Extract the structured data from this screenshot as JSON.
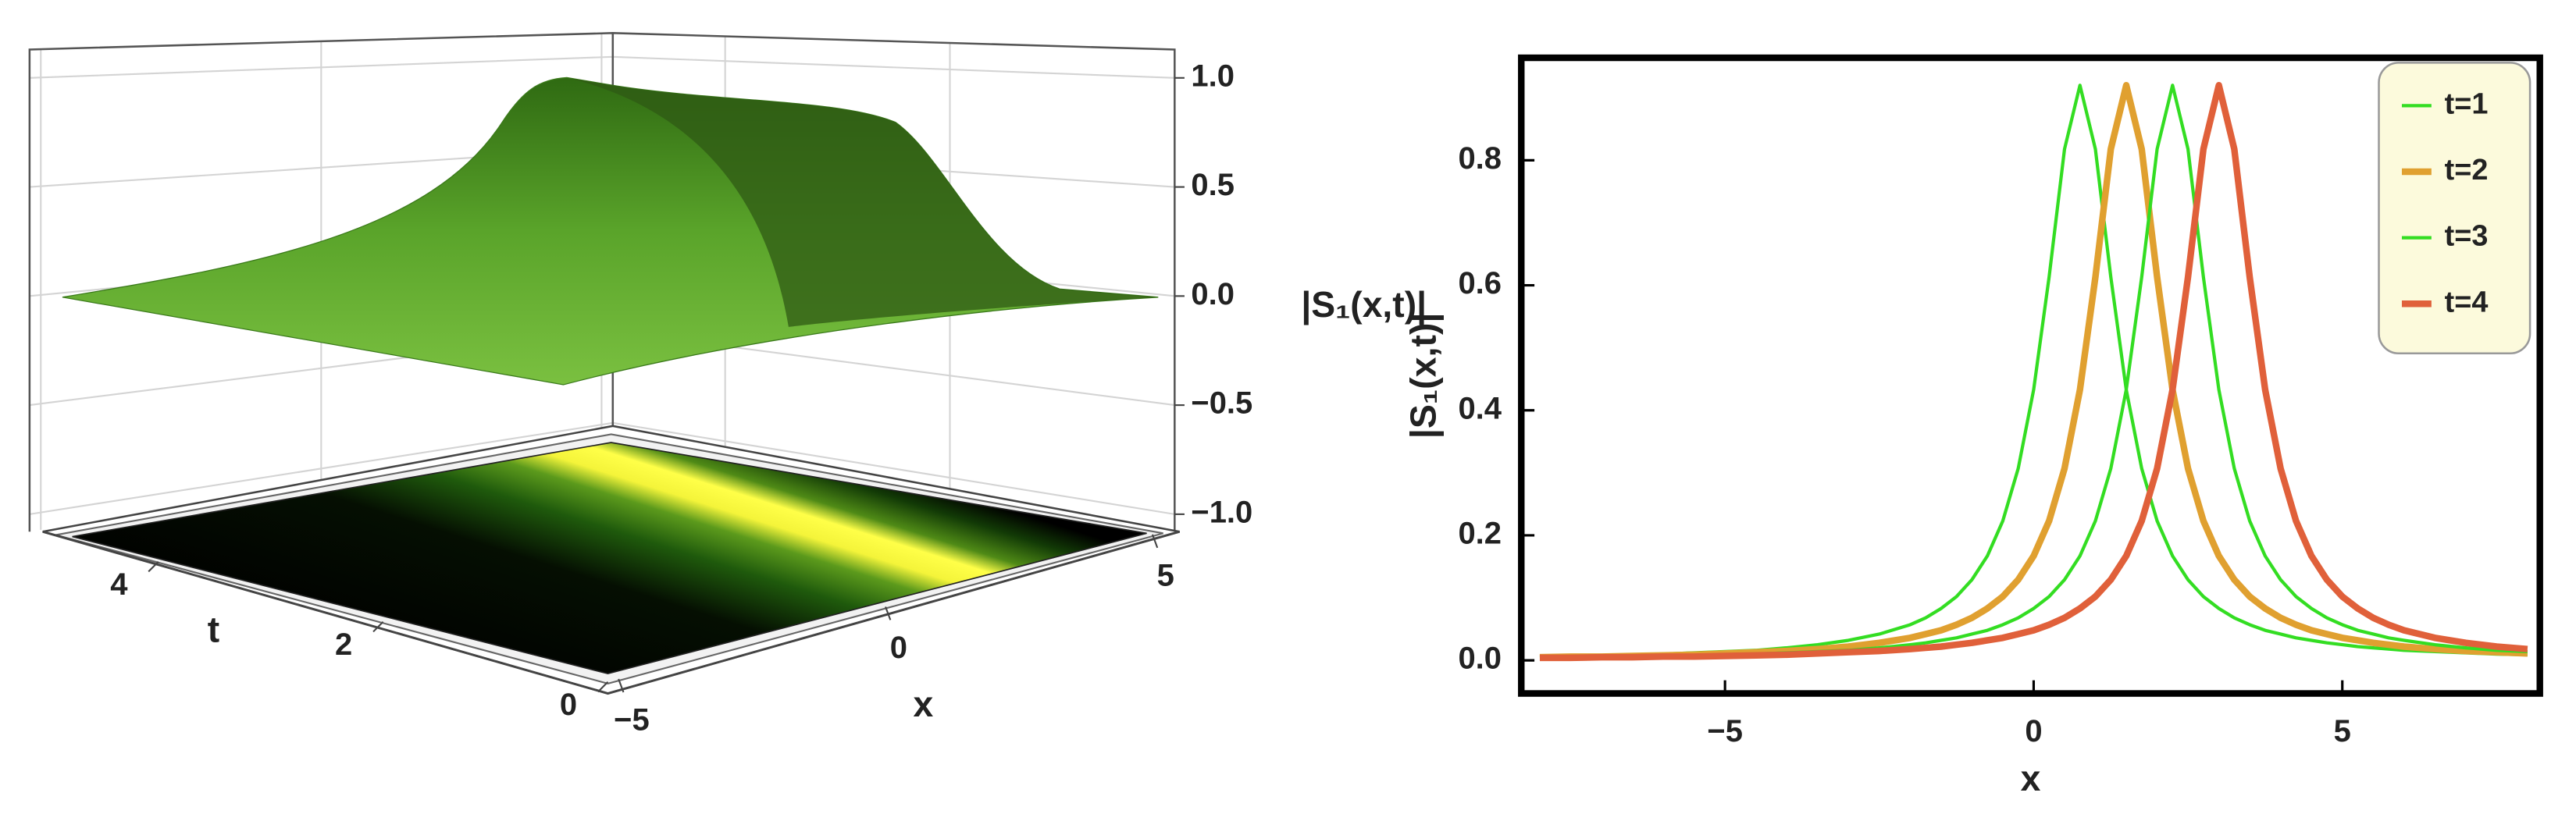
{
  "chart_data": [
    {
      "type": "surface3d",
      "x_label": "x",
      "y_label": "t",
      "z_label": "|S₁(x,t)|",
      "xlim": [
        -5.2,
        5.2
      ],
      "ylim": [
        0,
        5
      ],
      "zlim": [
        -1.08,
        1.13
      ],
      "xticks": [
        {
          "value": -5,
          "label": "−5"
        },
        0,
        5
      ],
      "yticks": [
        0,
        2,
        4
      ],
      "zticks": [
        {
          "value": -1,
          "label": "−1.0"
        },
        {
          "value": -0.5,
          "label": "−0.5"
        },
        {
          "value": 0,
          "label": "0.0"
        },
        0.5,
        {
          "value": 1,
          "label": "1.0"
        }
      ],
      "grid": true
    },
    {
      "type": "line",
      "x_label": "x",
      "y_label": "|S₁(x,t)|",
      "x": [
        -8,
        -7.5,
        -7,
        -6.5,
        -6,
        -5.5,
        -5,
        -4.5,
        -4,
        -3.5,
        -3,
        -2.5,
        -2,
        -1.75,
        -1.5,
        -1.25,
        -1,
        -0.75,
        -0.5,
        -0.25,
        0,
        0.25,
        0.5,
        0.75,
        1,
        1.25,
        1.5,
        1.75,
        2,
        2.25,
        2.5,
        2.75,
        3,
        3.25,
        3.5,
        3.75,
        4,
        4.25,
        4.5,
        4.75,
        5,
        5.25,
        5.5,
        5.75,
        6,
        6.5,
        7,
        7.5,
        8
      ],
      "series": [
        {
          "name": "t=1",
          "color": "#33dd22",
          "line_width": 2,
          "values": [
            0.006,
            0.007,
            0.008,
            0.009,
            0.01,
            0.012,
            0.014,
            0.016,
            0.02,
            0.025,
            0.032,
            0.042,
            0.057,
            0.068,
            0.083,
            0.102,
            0.129,
            0.167,
            0.223,
            0.307,
            0.433,
            0.613,
            0.818,
            0.92,
            0.818,
            0.613,
            0.433,
            0.307,
            0.223,
            0.167,
            0.129,
            0.102,
            0.083,
            0.068,
            0.057,
            0.048,
            0.042,
            0.036,
            0.032,
            0.028,
            0.025,
            0.022,
            0.02,
            0.018,
            0.016,
            0.014,
            0.012,
            0.01,
            0.009
          ]
        },
        {
          "name": "t=2",
          "color": "#e0a030",
          "line_width": 4,
          "values": [
            0.005,
            0.006,
            0.006,
            0.007,
            0.008,
            0.009,
            0.011,
            0.013,
            0.015,
            0.018,
            0.022,
            0.028,
            0.036,
            0.042,
            0.048,
            0.057,
            0.068,
            0.083,
            0.102,
            0.129,
            0.167,
            0.223,
            0.307,
            0.433,
            0.613,
            0.818,
            0.92,
            0.818,
            0.613,
            0.433,
            0.307,
            0.223,
            0.167,
            0.129,
            0.102,
            0.083,
            0.068,
            0.057,
            0.048,
            0.042,
            0.036,
            0.032,
            0.028,
            0.025,
            0.022,
            0.018,
            0.015,
            0.013,
            0.011
          ]
        },
        {
          "name": "t=3",
          "color": "#33dd22",
          "line_width": 2,
          "values": [
            0.004,
            0.005,
            0.005,
            0.006,
            0.007,
            0.008,
            0.009,
            0.01,
            0.012,
            0.014,
            0.016,
            0.02,
            0.025,
            0.028,
            0.032,
            0.036,
            0.042,
            0.048,
            0.057,
            0.068,
            0.083,
            0.102,
            0.129,
            0.167,
            0.223,
            0.307,
            0.433,
            0.613,
            0.818,
            0.92,
            0.818,
            0.613,
            0.433,
            0.307,
            0.223,
            0.167,
            0.129,
            0.102,
            0.083,
            0.068,
            0.057,
            0.048,
            0.042,
            0.036,
            0.032,
            0.025,
            0.02,
            0.016,
            0.014
          ]
        },
        {
          "name": "t=4",
          "color": "#e0603a",
          "line_width": 4,
          "values": [
            0.004,
            0.004,
            0.005,
            0.005,
            0.006,
            0.006,
            0.007,
            0.008,
            0.009,
            0.011,
            0.013,
            0.015,
            0.018,
            0.02,
            0.022,
            0.025,
            0.028,
            0.032,
            0.036,
            0.042,
            0.048,
            0.057,
            0.068,
            0.083,
            0.102,
            0.129,
            0.167,
            0.223,
            0.307,
            0.433,
            0.613,
            0.818,
            0.92,
            0.818,
            0.613,
            0.433,
            0.307,
            0.223,
            0.167,
            0.129,
            0.102,
            0.083,
            0.068,
            0.057,
            0.048,
            0.036,
            0.028,
            0.022,
            0.018
          ]
        }
      ],
      "xlim": [
        -8.3,
        8.2
      ],
      "ylim": [
        -0.053,
        0.964
      ],
      "xticks": [
        {
          "value": -5,
          "label": "−5"
        },
        0,
        5
      ],
      "yticks": [
        {
          "value": 0,
          "label": "0.0"
        },
        0.2,
        0.4,
        0.6,
        0.8
      ],
      "legend": "top-right"
    }
  ]
}
